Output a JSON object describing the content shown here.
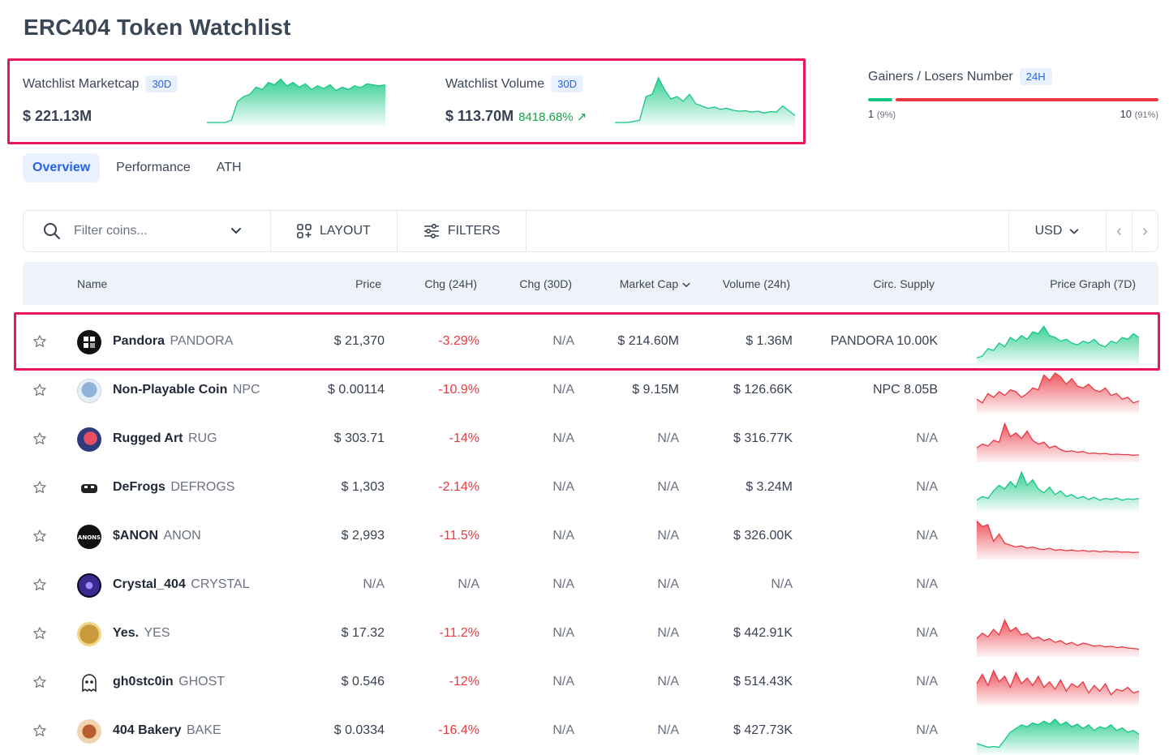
{
  "page": {
    "title": "ERC404 Token Watchlist"
  },
  "summary": {
    "marketcap": {
      "label": "Watchlist Marketcap",
      "period": "30D",
      "value": "$ 221.13M",
      "trend": "up"
    },
    "volume": {
      "label": "Watchlist Volume",
      "period": "30D",
      "value": "$ 113.70M",
      "change": "8418.68% ↗",
      "trend": "up"
    },
    "gainers_losers": {
      "label": "Gainers / Losers Number",
      "period": "24H",
      "gainers": "1",
      "gainers_pct": "(9%)",
      "losers": "10",
      "losers_pct": "(91%)",
      "gainers_fraction": 0.09
    }
  },
  "tabs": [
    {
      "label": "Overview",
      "active": true
    },
    {
      "label": "Performance",
      "active": false
    },
    {
      "label": "ATH",
      "active": false
    }
  ],
  "toolbar": {
    "search_placeholder": "Filter coins...",
    "layout_label": "LAYOUT",
    "filters_label": "FILTERS",
    "currency": "USD"
  },
  "table": {
    "headers": {
      "name": "Name",
      "price": "Price",
      "chg24": "Chg (24H)",
      "chg30": "Chg (30D)",
      "mcap": "Market Cap",
      "vol": "Volume (24h)",
      "supply": "Circ. Supply",
      "graph": "Price Graph (7D)"
    },
    "rows": [
      {
        "name": "Pandora",
        "symbol": "PANDORA",
        "price": "$ 21,370",
        "chg24": "-3.29%",
        "chg30": "N/A",
        "mcap": "$ 214.60M",
        "vol": "$ 1.36M",
        "supply": "PANDORA 10.00K",
        "trend": "up",
        "spark": [
          0.1,
          0.15,
          0.35,
          0.3,
          0.5,
          0.4,
          0.65,
          0.55,
          0.7,
          0.6,
          0.8,
          0.75,
          0.95,
          0.7,
          0.65,
          0.55,
          0.6,
          0.5,
          0.45,
          0.55,
          0.5,
          0.6,
          0.45,
          0.4,
          0.55,
          0.5,
          0.65,
          0.6,
          0.75,
          0.65
        ]
      },
      {
        "name": "Non-Playable Coin",
        "symbol": "NPC",
        "price": "$ 0.00114",
        "chg24": "-10.9%",
        "chg30": "N/A",
        "mcap": "$ 9.15M",
        "vol": "$ 126.66K",
        "supply": "NPC 8.05B",
        "trend": "down",
        "spark": [
          0.3,
          0.2,
          0.45,
          0.35,
          0.5,
          0.4,
          0.55,
          0.5,
          0.35,
          0.45,
          0.6,
          0.55,
          0.95,
          0.8,
          1.0,
          0.9,
          0.7,
          0.85,
          0.65,
          0.6,
          0.7,
          0.55,
          0.5,
          0.6,
          0.4,
          0.45,
          0.3,
          0.35,
          0.2,
          0.25
        ]
      },
      {
        "name": "Rugged Art",
        "symbol": "RUG",
        "price": "$ 303.71",
        "chg24": "-14%",
        "chg30": "N/A",
        "mcap": "N/A",
        "vol": "$ 316.77K",
        "supply": "N/A",
        "trend": "down",
        "spark": [
          0.3,
          0.4,
          0.35,
          0.5,
          0.45,
          0.95,
          0.6,
          0.7,
          0.55,
          0.75,
          0.5,
          0.4,
          0.45,
          0.3,
          0.35,
          0.25,
          0.2,
          0.22,
          0.18,
          0.2,
          0.15,
          0.16,
          0.14,
          0.15,
          0.12,
          0.13,
          0.12,
          0.12,
          0.1,
          0.11
        ]
      },
      {
        "name": "DeFrogs",
        "symbol": "DEFROGS",
        "price": "$ 1,303",
        "chg24": "-2.14%",
        "chg30": "N/A",
        "mcap": "N/A",
        "vol": "$ 3.24M",
        "supply": "N/A",
        "trend": "up",
        "spark": [
          0.2,
          0.3,
          0.25,
          0.45,
          0.6,
          0.5,
          0.7,
          0.55,
          0.95,
          0.6,
          0.75,
          0.5,
          0.4,
          0.55,
          0.35,
          0.45,
          0.3,
          0.35,
          0.25,
          0.3,
          0.22,
          0.28,
          0.2,
          0.25,
          0.22,
          0.26,
          0.2,
          0.24,
          0.22,
          0.25
        ]
      },
      {
        "name": "$ANON",
        "symbol": "ANON",
        "price": "$ 2,993",
        "chg24": "-11.5%",
        "chg30": "N/A",
        "mcap": "N/A",
        "vol": "$ 326.00K",
        "supply": "N/A",
        "trend": "down",
        "spark": [
          0.95,
          0.8,
          0.85,
          0.4,
          0.6,
          0.35,
          0.3,
          0.25,
          0.28,
          0.22,
          0.25,
          0.2,
          0.18,
          0.22,
          0.16,
          0.18,
          0.15,
          0.17,
          0.14,
          0.16,
          0.13,
          0.15,
          0.12,
          0.14,
          0.12,
          0.13,
          0.11,
          0.12,
          0.1,
          0.11
        ]
      },
      {
        "name": "Crystal_404",
        "symbol": "CRYSTAL",
        "price": "N/A",
        "chg24": "N/A",
        "chg30": "N/A",
        "mcap": "N/A",
        "vol": "N/A",
        "supply": "N/A",
        "trend": "none",
        "spark": []
      },
      {
        "name": "Yes.",
        "symbol": "YES",
        "price": "$ 17.32",
        "chg24": "-11.2%",
        "chg30": "N/A",
        "mcap": "N/A",
        "vol": "$ 442.91K",
        "supply": "N/A",
        "trend": "down",
        "spark": [
          0.4,
          0.55,
          0.45,
          0.65,
          0.5,
          0.9,
          0.6,
          0.7,
          0.5,
          0.55,
          0.4,
          0.45,
          0.35,
          0.4,
          0.3,
          0.35,
          0.25,
          0.3,
          0.22,
          0.28,
          0.25,
          0.2,
          0.22,
          0.18,
          0.2,
          0.16,
          0.18,
          0.15,
          0.14,
          0.12
        ]
      },
      {
        "name": "gh0stc0in",
        "symbol": "GHOST",
        "price": "$ 0.546",
        "chg24": "-12%",
        "chg30": "N/A",
        "mcap": "N/A",
        "vol": "$ 514.43K",
        "supply": "N/A",
        "trend": "down",
        "spark": [
          0.5,
          0.75,
          0.45,
          0.85,
          0.55,
          0.7,
          0.4,
          0.8,
          0.5,
          0.65,
          0.45,
          0.7,
          0.4,
          0.55,
          0.35,
          0.6,
          0.3,
          0.5,
          0.4,
          0.55,
          0.25,
          0.45,
          0.3,
          0.5,
          0.2,
          0.35,
          0.3,
          0.4,
          0.25,
          0.3
        ]
      },
      {
        "name": "404 Bakery",
        "symbol": "BAKE",
        "price": "$ 0.0334",
        "chg24": "-16.4%",
        "chg30": "N/A",
        "mcap": "N/A",
        "vol": "$ 427.73K",
        "supply": "N/A",
        "trend": "up",
        "spark": [
          0.2,
          0.15,
          0.1,
          0.12,
          0.1,
          0.3,
          0.5,
          0.6,
          0.7,
          0.65,
          0.75,
          0.7,
          0.8,
          0.72,
          0.85,
          0.7,
          0.78,
          0.65,
          0.72,
          0.6,
          0.7,
          0.55,
          0.65,
          0.6,
          0.7,
          0.55,
          0.62,
          0.5,
          0.55,
          0.45
        ]
      }
    ]
  },
  "colors": {
    "up": "#16c784",
    "down": "#ea3943",
    "accent": "#2563eb",
    "highlight": "#e8175d"
  }
}
